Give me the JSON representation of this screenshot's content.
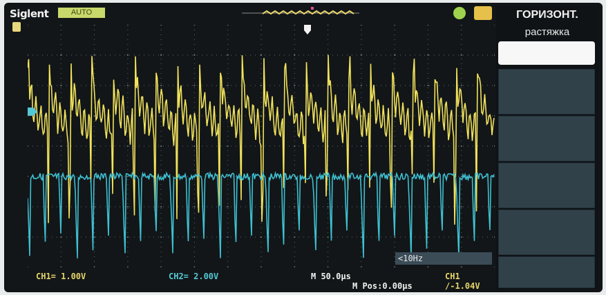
{
  "brand": "Siglent",
  "mode_label": "AUTO",
  "menu": {
    "title": "ГОРИЗОНТ.",
    "item_label": "растяжка"
  },
  "status": {
    "ch1_scale": "CH1= 1.00V",
    "ch2_scale": "CH2= 2.00V",
    "timebase": "M 50.0µs",
    "position": "M Pos:0.00µs",
    "trigger": "CH1 /-1.04V",
    "freq_counter": "<10Hz"
  },
  "colors": {
    "ch1": "#f1e25c",
    "ch2": "#3fc0d2",
    "grid": "#5c6a70"
  },
  "icons": {
    "marker": "trigger-level-marker",
    "run": "run-status-icon",
    "trigger": "trigger-type-icon"
  }
}
